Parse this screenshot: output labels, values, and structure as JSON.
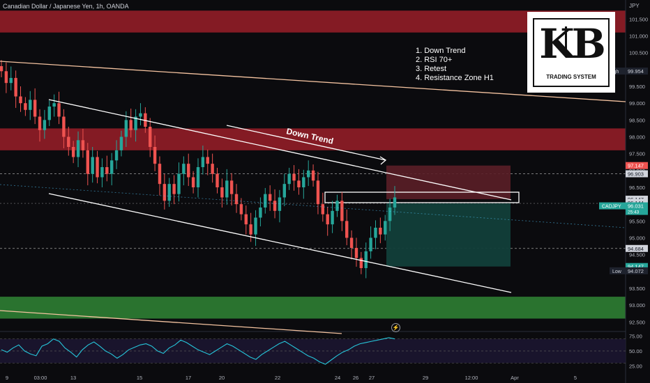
{
  "header": {
    "title": "Canadian Dollar / Japanese Yen, 1h, OANDA",
    "currency": "JPY"
  },
  "notes": [
    "1. Down Trend",
    "2. RSI 70+",
    "3. Retest",
    "4. Resistance Zone H1"
  ],
  "trend_label": "Down Trend",
  "logo": {
    "letters": "KB",
    "tagline": "TRADING SYSTEM"
  },
  "colors": {
    "background": "#0b0b0e",
    "resistance_zone": "#8f1d26",
    "support_zone": "#2e7d32",
    "bull": "#26a69a",
    "bear": "#ef5350",
    "stop_zone": "#5a1e27",
    "target_zone": "#123f3a",
    "trend_line": "#ffffff",
    "long_trend_line": "#f4c3a0",
    "rsi_line": "#26c6da"
  },
  "chart_data": [
    {
      "type": "candlestick",
      "symbol": "CADJPY",
      "timeframe": "1h",
      "ylim": [
        92.3,
        101.9
      ],
      "x_ticks": [
        "9",
        "03:00",
        "13",
        "15",
        "17",
        "20",
        "22",
        "24",
        "26",
        "27",
        "29",
        "12:00",
        "Apr",
        "5"
      ],
      "y_ticks": [
        "101.500",
        "101.000",
        "100.500",
        "100.000",
        "99.500",
        "99.000",
        "98.500",
        "98.000",
        "97.500",
        "97.000",
        "96.500",
        "96.000",
        "95.500",
        "95.000",
        "94.500",
        "94.000",
        "93.500",
        "93.000",
        "92.500"
      ],
      "zones": [
        {
          "name": "resistance-zone-top",
          "from": 101.1,
          "to": 101.75
        },
        {
          "name": "resistance-zone-h1",
          "from": 97.6,
          "to": 98.25
        },
        {
          "name": "support-zone",
          "from": 92.6,
          "to": 93.25
        }
      ],
      "horizontal_levels": [
        96.903,
        94.684
      ],
      "price_labels": [
        {
          "text": "High",
          "value": "99.954",
          "price": 99.954,
          "style": "dark"
        },
        {
          "text": "",
          "value": "97.147",
          "price": 97.147,
          "style": "red"
        },
        {
          "text": "",
          "value": "96.903",
          "price": 96.903,
          "style": "light"
        },
        {
          "text": "",
          "value": "96.147",
          "price": 96.147,
          "style": "light"
        },
        {
          "text": "",
          "value": "96.144",
          "price": 96.05,
          "style": "light"
        },
        {
          "text": "CADJPY",
          "value": "96.031",
          "sub": "25:43",
          "price": 95.95,
          "style": "teal"
        },
        {
          "text": "",
          "value": "94.684",
          "price": 94.684,
          "style": "light"
        },
        {
          "text": "",
          "value": "94.147",
          "price": 94.147,
          "style": "teal"
        },
        {
          "text": "Low",
          "value": "94.072",
          "price": 94.02,
          "style": "dark"
        }
      ],
      "trade": {
        "entry": 96.147,
        "stop": 97.147,
        "target": 94.147
      },
      "closes": [
        99.95,
        99.6,
        99.75,
        99.2,
        99.0,
        98.8,
        99.1,
        98.6,
        98.2,
        98.5,
        98.9,
        99.0,
        98.6,
        98.0,
        97.7,
        97.4,
        97.9,
        97.6,
        96.9,
        97.4,
        96.8,
        97.1,
        96.9,
        97.3,
        97.6,
        98.0,
        98.5,
        98.2,
        98.6,
        98.7,
        98.3,
        97.7,
        97.2,
        96.6,
        96.1,
        96.6,
        96.3,
        96.9,
        97.2,
        96.8,
        96.5,
        97.1,
        97.4,
        97.2,
        96.9,
        96.5,
        96.2,
        96.7,
        96.3,
        96.0,
        95.7,
        95.4,
        95.1,
        95.6,
        95.9,
        96.3,
        96.1,
        95.8,
        96.2,
        96.6,
        96.9,
        96.7,
        96.5,
        96.8,
        97.0,
        96.7,
        96.0,
        95.7,
        95.4,
        95.8,
        96.1,
        95.5,
        95.0,
        94.7,
        94.4,
        94.1,
        94.6,
        95.0,
        95.3,
        95.1,
        95.5,
        95.9,
        96.2
      ],
      "x_tick_positions": [
        10,
        58,
        105,
        200,
        270,
        318,
        398,
        484,
        510,
        533,
        610,
        676,
        738,
        825
      ]
    },
    {
      "type": "line",
      "name": "RSI",
      "ylim": [
        20,
        80
      ],
      "y_ticks": [
        "75.00",
        "50.00",
        "25.00"
      ],
      "values": [
        52,
        48,
        55,
        60,
        50,
        45,
        42,
        58,
        62,
        70,
        66,
        55,
        48,
        40,
        52,
        60,
        65,
        58,
        50,
        45,
        38,
        44,
        52,
        56,
        60,
        62,
        58,
        50,
        46,
        55,
        60,
        68,
        64,
        58,
        52,
        48,
        44,
        50,
        56,
        62,
        58,
        52,
        46,
        40,
        36,
        44,
        50,
        56,
        62,
        66,
        60,
        54,
        48,
        42,
        38,
        32,
        28,
        35,
        42,
        48,
        52,
        58,
        62,
        64,
        66,
        68,
        70,
        72,
        70
      ]
    }
  ]
}
